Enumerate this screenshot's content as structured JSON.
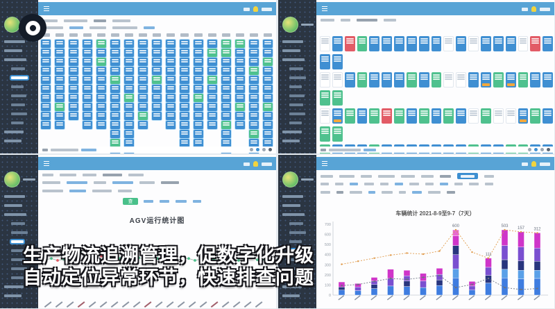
{
  "overlay": {
    "subtitle_line1": "生产物流追溯管理，促数字化升级",
    "subtitle_line2": "自动定位异常环节，快速排查问题"
  },
  "colors": {
    "header_blue": "#58a4d6",
    "sidebar_dark": "#2b3542",
    "tile_blue": "#3f8fd2",
    "tile_green": "#4fc18e",
    "tile_red": "#e25b66",
    "badge_orange": "#f3a83c",
    "accent_link": "#3d8fd1",
    "chart_blue": "#3f7de0",
    "chart_lightblue": "#5aa0e8",
    "chart_navy": "#28357e",
    "chart_purple": "#7a4fd0",
    "chart_magenta": "#cf35c9",
    "chart_pink": "#e86ad0",
    "line_orange": "#e09a4a",
    "line_dark": "#6a7280",
    "marker_green": "#4fc18e",
    "marker_red": "#e25b66",
    "marker_purple": "#7a6bd8",
    "marker_blue": "#4a7fd1"
  },
  "quadrants": {
    "top_left": {
      "board_columns": [
        {
          "tiles": "bbbbbbbbbb"
        },
        {
          "tiles": "bbbbbbbgbb"
        },
        {
          "tiles": "bbbbbbbbb"
        },
        {
          "tiles": "bbbbbbbbbb"
        },
        {
          "tiles": "gbgbbbbbbb"
        },
        {
          "tiles": "bbbbgbbbbbbgb"
        },
        {
          "tiles": "bbbbbbgbbbbbb"
        },
        {
          "tiles": "bbbbbbbbgb"
        },
        {
          "tiles": "bbbbgbbbb"
        },
        {
          "tiles": "bbbbbbbbbb"
        },
        {
          "tiles": "bbbbbbbbbbbb"
        },
        {
          "tiles": "bbbbbbgbbbbb"
        },
        {
          "tiles": "bgbbgbbbbb"
        },
        {
          "tiles": "ggbbbbbbbgbbbb"
        },
        {
          "tiles": "gbbbbbbgbb"
        },
        {
          "tiles": "bbbgbbbbbbgbb"
        },
        {
          "tiles": "bbgbbbbgbbbb"
        }
      ]
    },
    "top_right": {
      "board_rows": [
        {
          "kind": "main",
          "tiles": [
            "w",
            "b",
            "r",
            "g",
            "b",
            "b",
            "b",
            "b",
            "b",
            "b",
            "w",
            "b",
            "w",
            "b",
            "b",
            "b",
            "w",
            "r",
            "b"
          ]
        },
        {
          "kind": "sub",
          "tiles": [
            "b",
            "b"
          ]
        },
        {
          "kind": "main",
          "tiles": [
            "w",
            "w",
            "b",
            "g",
            "b",
            "b",
            "b",
            "g",
            "b",
            "g",
            "w",
            "w",
            "b",
            "B",
            "g",
            "B",
            "g",
            "b",
            "b"
          ]
        },
        {
          "kind": "sub",
          "tiles": [
            "g",
            "g"
          ]
        },
        {
          "kind": "main",
          "tiles": [
            "w",
            "B",
            "g",
            "b",
            "g",
            "r",
            "g",
            "b",
            "g",
            "b",
            "g",
            "b",
            "w",
            "g",
            "w",
            "w",
            "B",
            "g",
            "b"
          ]
        },
        {
          "kind": "sub",
          "tiles": [
            "g",
            "g"
          ]
        },
        {
          "kind": "r4",
          "tiles": [
            "g",
            "b",
            "b",
            "b",
            "g",
            "b",
            "b",
            "b",
            "b",
            "b",
            "b",
            "b",
            "g",
            "b",
            "b",
            "g",
            "g",
            "b",
            "b"
          ]
        }
      ]
    },
    "bottom_left": {
      "search_button_label": "查询",
      "chart": {
        "type": "line",
        "title": "AGV运行统计图",
        "values": [
          4.9,
          5.1,
          4.8,
          5.0,
          5.2,
          5.6,
          6.2,
          6.6,
          6.0,
          5.5,
          5.2,
          5.0,
          5.1,
          4.9,
          5.0,
          5.2,
          5.0,
          4.8,
          5.1,
          5.0,
          5.2,
          4.9,
          5.0,
          5.1,
          4.8,
          5.0,
          5.2,
          5.0,
          4.9,
          5.1,
          5.0,
          4.8,
          5.0,
          5.2,
          4.9,
          5.0
        ],
        "marker_colors": [
          "g",
          "g",
          "r",
          "g",
          "g",
          "p",
          "g",
          "g",
          "g",
          "r",
          "g",
          "g",
          "g",
          "b",
          "g",
          "g",
          "r",
          "g",
          "g",
          "g",
          "p",
          "g",
          "g",
          "g",
          "g",
          "r",
          "g",
          "g",
          "g",
          "g",
          "b",
          "g",
          "g",
          "r",
          "g",
          "g"
        ]
      }
    },
    "bottom_right": {
      "chart": {
        "type": "stacked_bar_line",
        "title": "车辆统计 2021-8-9至9-7（7天）",
        "y_ticks": [
          "700",
          "600",
          "500",
          "400",
          "300",
          "200",
          "100",
          "0"
        ],
        "bars": [
          {
            "segments": [
              [
                "blue",
                50
              ],
              [
                "navy",
                30
              ],
              [
                "magenta",
                50
              ]
            ]
          },
          {
            "segments": [
              [
                "blue",
                45
              ],
              [
                "purple",
                35
              ],
              [
                "magenta",
                35
              ]
            ]
          },
          {
            "segments": [
              [
                "blue",
                65
              ],
              [
                "navy",
                40
              ],
              [
                "purple",
                35
              ],
              [
                "magenta",
                35
              ]
            ]
          },
          {
            "segments": [
              [
                "blue",
                90
              ],
              [
                "purple",
                75
              ],
              [
                "magenta",
                90
              ]
            ]
          },
          {
            "segments": [
              [
                "blue",
                85
              ],
              [
                "navy",
                55
              ],
              [
                "purple",
                50
              ],
              [
                "magenta",
                55
              ]
            ]
          },
          {
            "segments": [
              [
                "blue",
                75
              ],
              [
                "purple",
                65
              ],
              [
                "magenta",
                75
              ]
            ]
          },
          {
            "segments": [
              [
                "blue",
                95
              ],
              [
                "navy",
                55
              ],
              [
                "purple",
                55
              ],
              [
                "magenta",
                60
              ]
            ]
          },
          {
            "segments": [
              [
                "blue",
                170
              ],
              [
                "lightblue",
                90
              ],
              [
                "purple",
                140
              ],
              [
                "navy",
                90
              ],
              [
                "magenta",
                95
              ],
              [
                "pink",
                60
              ]
            ]
          },
          {
            "segments": [
              [
                "blue",
                50
              ],
              [
                "purple",
                40
              ],
              [
                "magenta",
                45
              ]
            ]
          },
          {
            "segments": [
              [
                "blue",
                120
              ],
              [
                "navy",
                75
              ],
              [
                "purple",
                80
              ],
              [
                "magenta",
                90
              ]
            ]
          },
          {
            "segments": [
              [
                "blue",
                170
              ],
              [
                "lightblue",
                85
              ],
              [
                "navy",
                95
              ],
              [
                "purple",
                140
              ],
              [
                "magenta",
                155
              ]
            ]
          },
          {
            "segments": [
              [
                "blue",
                160
              ],
              [
                "lightblue",
                85
              ],
              [
                "navy",
                95
              ],
              [
                "purple",
                135
              ],
              [
                "magenta",
                150
              ]
            ]
          },
          {
            "segments": [
              [
                "blue",
                165
              ],
              [
                "lightblue",
                80
              ],
              [
                "navy",
                90
              ],
              [
                "purple",
                130
              ],
              [
                "magenta",
                150
              ]
            ]
          }
        ],
        "line_orange": [
          305,
          335,
          365,
          395,
          415,
          405,
          435,
          645,
          425,
          365,
          645,
          625,
          615
        ],
        "line_dark": [
          95,
          105,
          135,
          165,
          155,
          175,
          195,
          75,
          105,
          165,
          75,
          55,
          65
        ],
        "bar_labels": [
          {
            "index": 7,
            "text": "600"
          },
          {
            "index": 9,
            "text": "111"
          },
          {
            "index": 10,
            "text": "503"
          },
          {
            "index": 11,
            "text": "157"
          },
          {
            "index": 12,
            "text": "312"
          }
        ]
      }
    }
  }
}
